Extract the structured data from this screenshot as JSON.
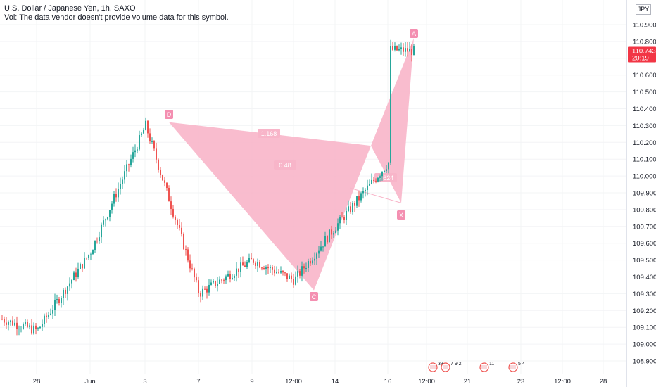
{
  "header": {
    "title": "U.S. Dollar / Japanese Yen, 1h, SAXO",
    "volume_note": "Vol: The data vendor doesn't provide volume data for this symbol.",
    "currency": "JPY"
  },
  "price_tag": {
    "price": "110.743",
    "countdown": "20:19",
    "color": "#f23645"
  },
  "chart_data": {
    "type": "candlestick",
    "title": "U.S. Dollar / Japanese Yen, 1h, SAXO",
    "y_axis": {
      "ticks": [
        "110.900",
        "110.800",
        "110.700",
        "110.600",
        "110.500",
        "110.400",
        "110.300",
        "110.200",
        "110.100",
        "110.000",
        "109.900",
        "109.800",
        "109.700",
        "109.600",
        "109.500",
        "109.400",
        "109.300",
        "109.200",
        "109.100",
        "109.000",
        "108.900"
      ],
      "range": [
        108.85,
        110.95
      ]
    },
    "x_axis": {
      "ticks": [
        "28",
        "Jun",
        "3",
        "7",
        "9",
        "12:00",
        "14",
        "16",
        "12:00",
        "21",
        "23",
        "12:00",
        "28"
      ]
    },
    "current_price": 110.743,
    "price_path": [
      {
        "x": "28",
        "y": 109.08
      },
      {
        "x": "Jun",
        "y": 109.55
      },
      {
        "x": "3",
        "y": 110.3
      },
      {
        "x": "7",
        "y": 109.3
      },
      {
        "x": "9",
        "y": 109.5
      },
      {
        "x": "12:00",
        "y": 109.38
      },
      {
        "x": "14",
        "y": 109.7
      },
      {
        "x": "16",
        "y": 110.08
      },
      {
        "x": "12:00",
        "y": 110.78
      }
    ],
    "pattern": {
      "points": [
        {
          "label": "X",
          "price": 109.84
        },
        {
          "label": "A",
          "price": 110.82
        },
        {
          "label": "D",
          "price": 110.32
        },
        {
          "label": "C",
          "price": 109.32
        }
      ],
      "ratios": [
        "1.168",
        "0.48",
        "0.624"
      ],
      "fill_color": "#f8b5c9",
      "label_color": "#f48fb1"
    },
    "colors": {
      "up": "#26a69a",
      "down": "#ef5350"
    },
    "events": [
      "33",
      "7 9 2",
      "11",
      "5 4"
    ]
  }
}
